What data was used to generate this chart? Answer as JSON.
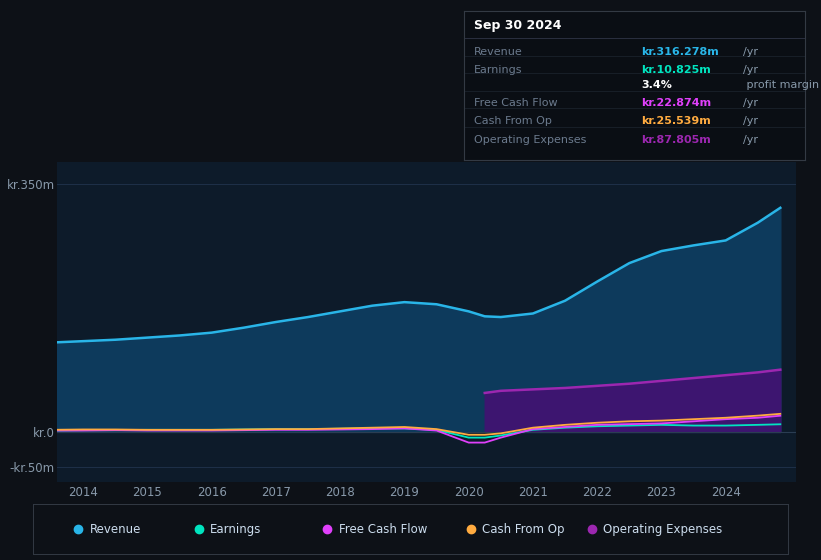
{
  "background_color": "#0d1117",
  "plot_bg_color": "#0d1b2a",
  "grid_color": "#1e3048",
  "years": [
    2013.5,
    2014,
    2014.5,
    2015,
    2015.5,
    2016,
    2016.5,
    2017,
    2017.5,
    2018,
    2018.5,
    2019,
    2019.5,
    2020,
    2020.25,
    2020.5,
    2021,
    2021.5,
    2022,
    2022.5,
    2023,
    2023.5,
    2024,
    2024.5,
    2024.85
  ],
  "revenue": [
    126,
    128,
    130,
    133,
    136,
    140,
    147,
    155,
    162,
    170,
    178,
    183,
    180,
    170,
    163,
    162,
    167,
    185,
    212,
    238,
    255,
    263,
    270,
    295,
    316
  ],
  "earnings": [
    2,
    2.5,
    2.5,
    3,
    3,
    3,
    3.5,
    4,
    4,
    4.5,
    5,
    5,
    3,
    -8,
    -8,
    -5,
    3,
    6,
    8,
    9,
    10,
    9,
    9,
    10,
    10.825
  ],
  "free_cash_flow": [
    2,
    2,
    2.5,
    2,
    2,
    2,
    2.5,
    3,
    3,
    3.5,
    4,
    5,
    2,
    -15,
    -15,
    -8,
    4,
    7,
    10,
    11,
    12,
    15,
    18,
    20,
    22.874
  ],
  "cash_from_op": [
    3,
    3.5,
    3.5,
    3,
    3,
    3,
    3.5,
    4,
    4,
    5,
    6,
    7,
    4,
    -4,
    -4,
    -2,
    6,
    10,
    13,
    15,
    16,
    18,
    20,
    23,
    25.539
  ],
  "operating_expenses": [
    0,
    0,
    0,
    0,
    0,
    0,
    0,
    0,
    0,
    0,
    0,
    0,
    0,
    0,
    55,
    58,
    60,
    62,
    65,
    68,
    72,
    76,
    80,
    84,
    87.805
  ],
  "revenue_color": "#29b5e8",
  "earnings_color": "#00e5c0",
  "free_cash_flow_color": "#e040fb",
  "cash_from_op_color": "#ffab40",
  "operating_expenses_color": "#9c27b0",
  "operating_expenses_fill": "#3d1570",
  "revenue_fill": "#0d3a5c",
  "ylim_top": 380,
  "ylim_bottom": -70,
  "yticks": [
    -50,
    0,
    350
  ],
  "ytick_labels": [
    "-kr.50m",
    "kr.0",
    "kr.350m"
  ],
  "xlim_left": 2013.6,
  "xlim_right": 2025.1,
  "xticks": [
    2014,
    2015,
    2016,
    2017,
    2018,
    2019,
    2020,
    2021,
    2022,
    2023,
    2024
  ],
  "info_box": {
    "title": "Sep 30 2024",
    "rows": [
      {
        "label": "Revenue",
        "value": "kr.316.278m",
        "unit": "/yr",
        "value_color": "#29b5e8"
      },
      {
        "label": "Earnings",
        "value": "kr.10.825m",
        "unit": "/yr",
        "value_color": "#00e5c0"
      },
      {
        "label": "",
        "value": "3.4%",
        "unit": " profit margin",
        "value_color": "#ffffff"
      },
      {
        "label": "Free Cash Flow",
        "value": "kr.22.874m",
        "unit": "/yr",
        "value_color": "#e040fb"
      },
      {
        "label": "Cash From Op",
        "value": "kr.25.539m",
        "unit": "/yr",
        "value_color": "#ffab40"
      },
      {
        "label": "Operating Expenses",
        "value": "kr.87.805m",
        "unit": "/yr",
        "value_color": "#9c27b0"
      }
    ]
  },
  "legend": {
    "entries": [
      {
        "label": "Revenue",
        "color": "#29b5e8"
      },
      {
        "label": "Earnings",
        "color": "#00e5c0"
      },
      {
        "label": "Free Cash Flow",
        "color": "#e040fb"
      },
      {
        "label": "Cash From Op",
        "color": "#ffab40"
      },
      {
        "label": "Operating Expenses",
        "color": "#9c27b0"
      }
    ]
  }
}
